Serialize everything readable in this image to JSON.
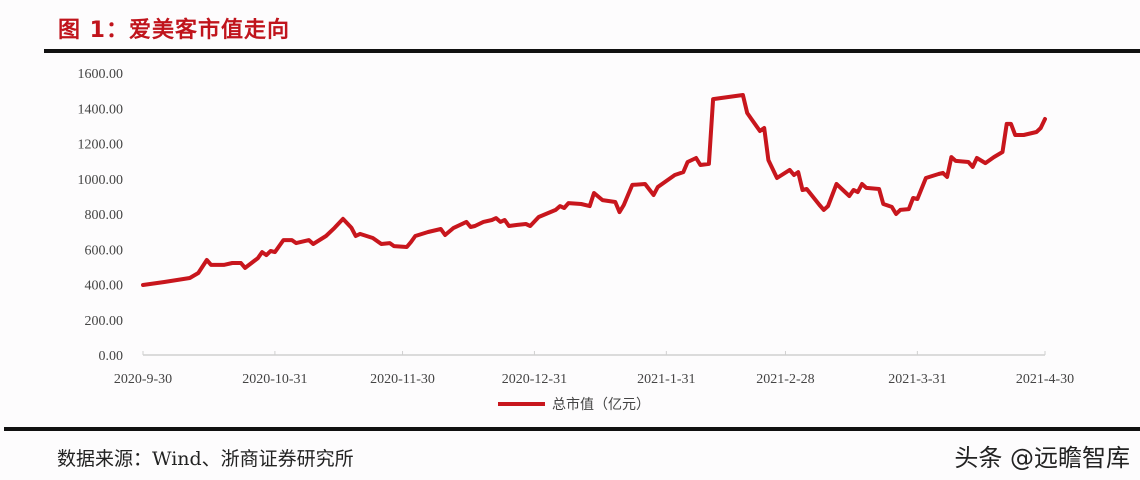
{
  "title": "图 1：爱美客市值走向",
  "source": "数据来源：Wind、浙商证券研究所",
  "watermark": "头条 @远瞻智库",
  "chart_data": {
    "type": "line",
    "title": "",
    "xlabel": "",
    "ylabel": "",
    "ylim": [
      0,
      1600
    ],
    "xlim": [
      "2020-09-30",
      "2021-04-30"
    ],
    "grid": false,
    "legend": "bottom",
    "y_ticks": [
      0,
      200,
      400,
      600,
      800,
      1000,
      1200,
      1400,
      1600
    ],
    "y_tick_labels": [
      "0.00",
      "200.00",
      "400.00",
      "600.00",
      "800.00",
      "1000.00",
      "1200.00",
      "1400.00",
      "1600.00"
    ],
    "x_ticks": [
      "2020-09-30",
      "2020-10-31",
      "2020-11-30",
      "2020-12-31",
      "2021-01-31",
      "2021-02-28",
      "2021-03-31",
      "2021-04-30"
    ],
    "x_tick_labels": [
      "2020-9-30",
      "2020-10-31",
      "2020-11-30",
      "2020-12-31",
      "2021-1-31",
      "2021-2-28",
      "2021-3-31",
      "2021-4-30"
    ],
    "series": [
      {
        "name": "总市值（亿元）",
        "color": "#c8161d",
        "x": [
          "2020-09-30",
          "2020-10-05",
          "2020-10-11",
          "2020-10-13",
          "2020-10-15",
          "2020-10-16",
          "2020-10-19",
          "2020-10-21",
          "2020-10-23",
          "2020-10-24",
          "2020-10-27",
          "2020-10-28",
          "2020-10-29",
          "2020-10-30",
          "2020-10-31",
          "2020-11-02",
          "2020-11-04",
          "2020-11-05",
          "2020-11-08",
          "2020-11-09",
          "2020-11-12",
          "2020-11-14",
          "2020-11-16",
          "2020-11-18",
          "2020-11-19",
          "2020-11-20",
          "2020-11-23",
          "2020-11-25",
          "2020-11-27",
          "2020-11-28",
          "2020-12-01",
          "2020-12-02",
          "2020-12-03",
          "2020-12-06",
          "2020-12-09",
          "2020-12-10",
          "2020-12-12",
          "2020-12-15",
          "2020-12-16",
          "2020-12-17",
          "2020-12-19",
          "2020-12-21",
          "2020-12-22",
          "2020-12-23",
          "2020-12-24",
          "2020-12-25",
          "2020-12-27",
          "2020-12-29",
          "2020-12-30",
          "2021-01-01",
          "2021-01-05",
          "2021-01-06",
          "2021-01-07",
          "2021-01-08",
          "2021-01-11",
          "2021-01-13",
          "2021-01-14",
          "2021-01-16",
          "2021-01-19",
          "2021-01-20",
          "2021-01-21",
          "2021-01-22",
          "2021-01-23",
          "2021-01-26",
          "2021-01-28",
          "2021-01-29",
          "2021-02-02",
          "2021-02-04",
          "2021-02-05",
          "2021-02-07",
          "2021-02-08",
          "2021-02-10",
          "2021-02-11",
          "2021-02-18",
          "2021-02-19",
          "2021-02-20",
          "2021-02-22",
          "2021-02-23",
          "2021-02-24",
          "2021-02-26",
          "2021-03-01",
          "2021-03-02",
          "2021-03-03",
          "2021-03-04",
          "2021-03-05",
          "2021-03-08",
          "2021-03-09",
          "2021-03-10",
          "2021-03-12",
          "2021-03-15",
          "2021-03-16",
          "2021-03-17",
          "2021-03-18",
          "2021-03-19",
          "2021-03-22",
          "2021-03-23",
          "2021-03-25",
          "2021-03-26",
          "2021-03-27",
          "2021-03-29",
          "2021-03-30",
          "2021-03-31",
          "2021-04-02",
          "2021-04-05",
          "2021-04-06",
          "2021-04-07",
          "2021-04-08",
          "2021-04-09",
          "2021-04-12",
          "2021-04-13",
          "2021-04-14",
          "2021-04-16",
          "2021-04-18",
          "2021-04-20",
          "2021-04-21",
          "2021-04-22",
          "2021-04-23",
          "2021-04-25",
          "2021-04-28",
          "2021-04-29",
          "2021-04-30"
        ],
        "values": [
          397,
          414,
          437,
          465,
          539,
          511,
          511,
          522,
          522,
          494,
          550,
          584,
          567,
          590,
          584,
          652,
          652,
          635,
          652,
          630,
          675,
          721,
          772,
          721,
          675,
          687,
          664,
          630,
          635,
          618,
          613,
          641,
          675,
          698,
          715,
          681,
          721,
          755,
          726,
          732,
          755,
          766,
          777,
          755,
          766,
          732,
          738,
          743,
          732,
          783,
          823,
          845,
          834,
          862,
          857,
          845,
          919,
          879,
          868,
          811,
          851,
          908,
          965,
          970,
          908,
          953,
          1021,
          1038,
          1095,
          1118,
          1078,
          1084,
          1452,
          1475,
          1373,
          1339,
          1271,
          1288,
          1106,
          1004,
          1050,
          1021,
          1038,
          936,
          942,
          851,
          823,
          845,
          970,
          902,
          936,
          925,
          970,
          948,
          942,
          857,
          840,
          800,
          823,
          828,
          891,
          885,
          1004,
          1027,
          1033,
          1010,
          1123,
          1101,
          1095,
          1067,
          1118,
          1089,
          1123,
          1152,
          1311,
          1311,
          1248,
          1248,
          1265,
          1288,
          1339
        ]
      }
    ]
  }
}
